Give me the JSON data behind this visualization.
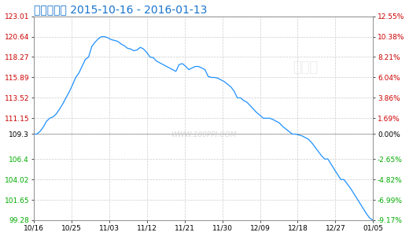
{
  "title": "双氧水指数 2015-10-16 - 2016-01-13",
  "title_color": "#1874CD",
  "background_color": "#FFFFFF",
  "plot_bg_color": "#FFFFFF",
  "line_color": "#1E90FF",
  "grid_color": "#CCCCCC",
  "left_yticks": [
    99.28,
    101.65,
    104.02,
    106.4,
    109.3,
    111.15,
    113.52,
    115.89,
    118.27,
    120.64,
    123.01
  ],
  "left_ytick_colors": [
    "#00AA00",
    "#00AA00",
    "#00AA00",
    "#00AA00",
    "#000000",
    "#CC0000",
    "#CC0000",
    "#CC0000",
    "#CC0000",
    "#CC0000",
    "#CC0000"
  ],
  "right_yticks_labels": [
    "-9.17%",
    "-6.99%",
    "-4.82%",
    "-2.65%",
    "0.00%",
    "1.69%",
    "3.86%",
    "6.04%",
    "8.21%",
    "10.38%",
    "12.55%"
  ],
  "right_yticks_colors": [
    "#00AA00",
    "#00AA00",
    "#00AA00",
    "#00AA00",
    "#000000",
    "#CC0000",
    "#CC0000",
    "#CC0000",
    "#CC0000",
    "#CC0000",
    "#CC0000"
  ],
  "zero_line_value": 109.3,
  "xtick_labels": [
    "10/16",
    "10/25",
    "11/03",
    "11/12",
    "11/21",
    "11/30",
    "12/09",
    "12/18",
    "12/27",
    "01/05"
  ],
  "watermark_text": "WWW.100PPI.COM",
  "y_data": [
    109.3,
    109.3,
    109.62,
    110.12,
    110.8,
    111.15,
    111.3,
    111.65,
    112.2,
    112.8,
    113.52,
    114.2,
    115.0,
    115.89,
    116.4,
    117.2,
    118.0,
    118.27,
    119.5,
    120.0,
    120.4,
    120.64,
    120.64,
    120.5,
    120.3,
    120.2,
    120.1,
    119.8,
    119.6,
    119.3,
    119.2,
    119.0,
    119.1,
    119.4,
    119.2,
    118.8,
    118.27,
    118.2,
    117.8,
    117.6,
    117.4,
    117.2,
    117.0,
    116.8,
    116.6,
    117.4,
    117.5,
    117.2,
    116.8,
    117.0,
    117.17,
    117.17,
    117.0,
    116.8,
    116.0,
    115.89,
    115.89,
    115.8,
    115.6,
    115.4,
    115.1,
    114.8,
    114.3,
    113.52,
    113.52,
    113.2,
    113.0,
    112.6,
    112.2,
    111.8,
    111.5,
    111.15,
    111.15,
    111.15,
    111.0,
    110.8,
    110.6,
    110.2,
    109.9,
    109.6,
    109.3,
    109.3,
    109.2,
    109.1,
    108.9,
    108.7,
    108.3,
    107.8,
    107.3,
    106.8,
    106.4,
    106.4,
    105.8,
    105.2,
    104.6,
    104.02,
    104.0,
    103.5,
    103.0,
    102.4,
    101.8,
    101.2,
    100.6,
    100.0,
    99.5,
    99.28
  ],
  "ymin": 99.28,
  "ymax": 123.01
}
